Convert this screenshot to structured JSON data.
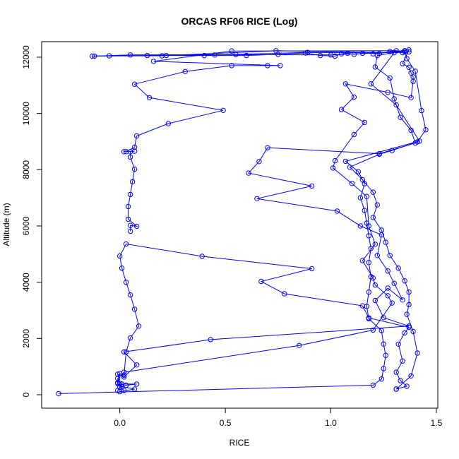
{
  "chart_data": {
    "type": "line",
    "title": "ORCAS RF06 RICE (Log)",
    "xlabel": "RICE",
    "ylabel": "Altitude (m)",
    "xlim": [
      -0.3,
      1.46
    ],
    "ylim": [
      0,
      12250
    ],
    "x_ticks": [
      "0.0",
      "0.5",
      "1.0",
      "1.5"
    ],
    "y_ticks": [
      "0",
      "2000",
      "4000",
      "6000",
      "8000",
      "10000",
      "12000"
    ],
    "marker": "open-circle",
    "color": "#0000ff",
    "grid": false,
    "legend": "none",
    "series": [
      {
        "points": [
          [
            -0.29,
            40
          ],
          [
            1.2,
            340
          ],
          [
            1.24,
            560
          ],
          [
            1.25,
            930
          ],
          [
            1.26,
            1400
          ],
          [
            1.25,
            1800
          ],
          [
            1.24,
            2280
          ],
          [
            1.18,
            2700
          ],
          [
            1.17,
            3140
          ],
          [
            1.18,
            3650
          ],
          [
            1.19,
            4200
          ],
          [
            1.18,
            4700
          ],
          [
            1.19,
            5200
          ],
          [
            1.18,
            5650
          ],
          [
            1.17,
            6100
          ],
          [
            1.16,
            6550
          ],
          [
            1.14,
            7000
          ],
          [
            1.16,
            7500
          ],
          [
            1.13,
            7930
          ],
          [
            1.07,
            8300
          ],
          [
            1.42,
            9020
          ],
          [
            1.31,
            10300
          ],
          [
            1.19,
            11050
          ],
          [
            1.3,
            12160
          ],
          [
            0.74,
            12230
          ],
          [
            0.2,
            12050
          ],
          [
            -0.12,
            12040
          ],
          [
            0.05,
            12080
          ],
          [
            0.55,
            12090
          ],
          [
            1.0,
            12080
          ],
          [
            1.35,
            12200
          ],
          [
            1.36,
            11950
          ],
          [
            1.4,
            11500
          ],
          [
            1.43,
            10100
          ],
          [
            1.45,
            9420
          ],
          [
            1.41,
            8990
          ],
          [
            1.29,
            8680
          ],
          [
            1.23,
            8550
          ],
          [
            1.09,
            8090
          ],
          [
            1.15,
            7640
          ],
          [
            1.2,
            7200
          ],
          [
            1.22,
            6750
          ],
          [
            1.2,
            6300
          ],
          [
            1.24,
            5850
          ],
          [
            1.26,
            5420
          ],
          [
            1.28,
            4950
          ],
          [
            1.32,
            4500
          ],
          [
            1.35,
            4050
          ],
          [
            1.37,
            3650
          ],
          [
            1.37,
            3200
          ],
          [
            1.36,
            2860
          ],
          [
            1.39,
            2250
          ],
          [
            1.41,
            1480
          ],
          [
            1.38,
            670
          ],
          [
            1.31,
            200
          ]
        ]
      },
      {
        "points": [
          [
            0.0,
            110
          ],
          [
            0.07,
            200
          ],
          [
            0.01,
            290
          ],
          [
            0.0,
            400
          ],
          [
            -0.01,
            730
          ],
          [
            0.02,
            630
          ],
          [
            0.08,
            1060
          ],
          [
            0.02,
            1520
          ],
          [
            0.43,
            1960
          ],
          [
            1.37,
            2440
          ],
          [
            1.25,
            2740
          ],
          [
            1.21,
            3350
          ],
          [
            1.27,
            3790
          ],
          [
            1.34,
            3370
          ],
          [
            1.3,
            3960
          ],
          [
            1.27,
            4400
          ],
          [
            1.22,
            4950
          ],
          [
            1.24,
            5680
          ],
          [
            1.14,
            6000
          ],
          [
            1.03,
            6530
          ],
          [
            0.65,
            6970
          ],
          [
            0.91,
            7420
          ],
          [
            0.61,
            7880
          ],
          [
            0.66,
            8290
          ],
          [
            0.7,
            8780
          ],
          [
            1.23,
            8570
          ],
          [
            1.4,
            8950
          ],
          [
            1.38,
            9400
          ],
          [
            1.33,
            9860
          ],
          [
            1.3,
            10520
          ],
          [
            1.28,
            11260
          ],
          [
            1.21,
            11650
          ],
          [
            1.22,
            12060
          ],
          [
            1.37,
            12260
          ],
          [
            1.34,
            11770
          ],
          [
            1.37,
            11640
          ],
          [
            1.38,
            11440
          ],
          [
            1.39,
            11300
          ],
          [
            1.39,
            11140
          ],
          [
            1.38,
            10560
          ],
          [
            1.27,
            10750
          ],
          [
            1.07,
            11050
          ],
          [
            1.11,
            10580
          ],
          [
            1.05,
            10140
          ],
          [
            1.16,
            9680
          ],
          [
            1.11,
            9250
          ],
          [
            1.02,
            8320
          ],
          [
            1.01,
            8060
          ],
          [
            1.1,
            7510
          ],
          [
            1.17,
            7050
          ],
          [
            1.18,
            6000
          ],
          [
            1.21,
            5350
          ],
          [
            1.15,
            4770
          ],
          [
            1.2,
            4150
          ],
          [
            1.21,
            3900
          ],
          [
            1.27,
            3520
          ],
          [
            1.29,
            3260
          ],
          [
            1.2,
            2300
          ],
          [
            0.85,
            1750
          ],
          [
            0.02,
            800
          ],
          [
            -0.01,
            580
          ],
          [
            -0.01,
            400
          ],
          [
            0.02,
            150
          ]
        ]
      },
      {
        "points": [
          [
            -0.01,
            150
          ],
          [
            0.0,
            270
          ],
          [
            0.03,
            340
          ],
          [
            0.08,
            380
          ],
          [
            0.01,
            380
          ],
          [
            -0.01,
            430
          ],
          [
            0.0,
            750
          ],
          [
            0.02,
            690
          ],
          [
            0.03,
            1520
          ],
          [
            0.05,
            2020
          ],
          [
            0.09,
            2440
          ],
          [
            0.07,
            3040
          ],
          [
            0.05,
            3550
          ],
          [
            0.03,
            4000
          ],
          [
            0.01,
            4500
          ],
          [
            0.0,
            4930
          ],
          [
            0.03,
            5360
          ],
          [
            0.39,
            4920
          ],
          [
            0.91,
            4480
          ],
          [
            0.67,
            4030
          ],
          [
            0.78,
            3590
          ],
          [
            1.15,
            3160
          ],
          [
            1.18,
            2730
          ],
          [
            1.37,
            2400
          ],
          [
            1.35,
            2200
          ],
          [
            1.32,
            1800
          ],
          [
            1.34,
            1200
          ],
          [
            1.31,
            800
          ],
          [
            1.33,
            500
          ],
          [
            1.36,
            300
          ],
          [
            1.31,
            200
          ]
        ]
      },
      {
        "points": [
          [
            0.05,
            5810
          ],
          [
            0.05,
            6020
          ],
          [
            0.08,
            5990
          ],
          [
            0.04,
            6240
          ],
          [
            0.04,
            6690
          ],
          [
            0.05,
            7120
          ],
          [
            0.06,
            7570
          ],
          [
            0.07,
            8020
          ],
          [
            0.05,
            8450
          ],
          [
            0.05,
            8640
          ],
          [
            0.07,
            8660
          ],
          [
            0.02,
            8640
          ],
          [
            0.03,
            8640
          ],
          [
            0.07,
            8800
          ],
          [
            0.08,
            9200
          ],
          [
            0.23,
            9640
          ],
          [
            0.49,
            10110
          ],
          [
            0.14,
            10560
          ],
          [
            0.07,
            11040
          ],
          [
            0.31,
            11490
          ],
          [
            0.53,
            11700
          ],
          [
            0.7,
            11700
          ],
          [
            0.76,
            11700
          ],
          [
            0.16,
            11850
          ],
          [
            0.53,
            12220
          ],
          [
            1.31,
            12230
          ],
          [
            1.37,
            12190
          ],
          [
            1.34,
            12160
          ],
          [
            0.89,
            12170
          ],
          [
            0.45,
            12080
          ],
          [
            0.13,
            12060
          ],
          [
            -0.05,
            12050
          ],
          [
            -0.13,
            12040
          ]
        ]
      },
      {
        "points": [
          [
            0.22,
            12060
          ],
          [
            0.4,
            12060
          ],
          [
            0.6,
            12060
          ],
          [
            0.75,
            12100
          ],
          [
            0.88,
            12150
          ],
          [
            0.95,
            12060
          ],
          [
            1.02,
            12040
          ],
          [
            1.05,
            12120
          ],
          [
            1.08,
            12140
          ],
          [
            1.11,
            12100
          ],
          [
            1.15,
            12140
          ],
          [
            1.23,
            12130
          ],
          [
            1.28,
            12200
          ],
          [
            1.35,
            12230
          ],
          [
            1.2,
            12120
          ]
        ]
      }
    ]
  }
}
